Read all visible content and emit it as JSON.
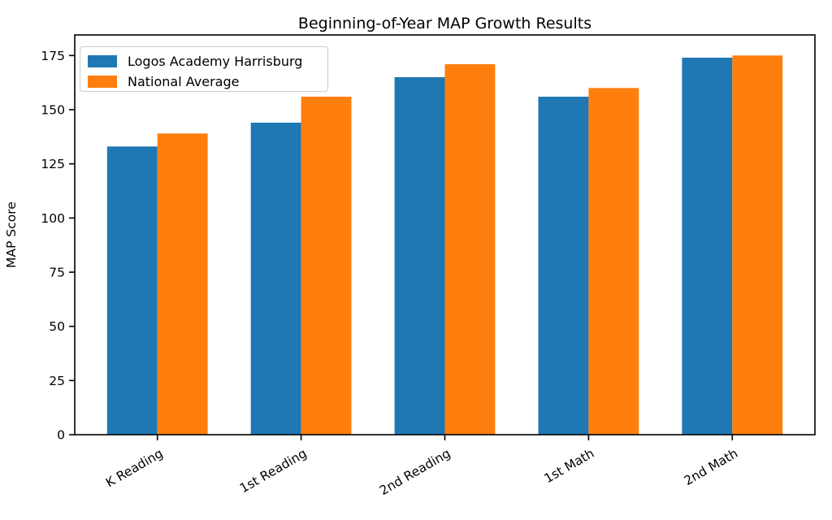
{
  "figure": {
    "title": "Beginning-of-Year MAP Growth Results",
    "ylabel": "MAP Score"
  },
  "chart_data": {
    "type": "bar",
    "title": "Beginning-of-Year MAP Growth Results",
    "xlabel": "",
    "ylabel": "MAP Score",
    "categories": [
      "K Reading",
      "1st Reading",
      "2nd Reading",
      "1st Math",
      "2nd Math"
    ],
    "series": [
      {
        "name": "Logos Academy Harrisburg",
        "color": "#1f77b4",
        "values": [
          133,
          144,
          165,
          156,
          174
        ]
      },
      {
        "name": "National Average",
        "color": "#ff7f0e",
        "values": [
          139,
          156,
          171,
          160,
          175
        ]
      }
    ],
    "ylim": [
      0,
      184.5
    ],
    "yticks": [
      0,
      25,
      50,
      75,
      100,
      125,
      150,
      175
    ],
    "x_tick_rotation_deg": 30,
    "bar_width_fraction": 0.35,
    "grid": false,
    "legend_position": "upper left",
    "axis_color": "#000000",
    "background_color": "#ffffff"
  }
}
